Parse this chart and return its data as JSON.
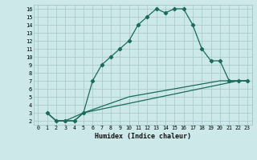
{
  "xlabel": "Humidex (Indice chaleur)",
  "xlim": [
    -0.5,
    23.5
  ],
  "ylim": [
    1.5,
    16.5
  ],
  "xticks": [
    0,
    1,
    2,
    3,
    4,
    5,
    6,
    7,
    8,
    9,
    10,
    11,
    12,
    13,
    14,
    15,
    16,
    17,
    18,
    19,
    20,
    21,
    22,
    23
  ],
  "yticks": [
    2,
    3,
    4,
    5,
    6,
    7,
    8,
    9,
    10,
    11,
    12,
    13,
    14,
    15,
    16
  ],
  "bg_color": "#cce8e8",
  "grid_color": "#aacccc",
  "line_color": "#1a6b5a",
  "line1_x": [
    1,
    2,
    3,
    4,
    5,
    6,
    7,
    8,
    9,
    10,
    11,
    12,
    13,
    14,
    15,
    16,
    17,
    18,
    19,
    20,
    21,
    22,
    23
  ],
  "line1_y": [
    3,
    2,
    2,
    2,
    3,
    7,
    9,
    10,
    11,
    12,
    14,
    15,
    16,
    15.5,
    16,
    16,
    14,
    11,
    9.5,
    9.5,
    7,
    7,
    7
  ],
  "line2_x": [
    1,
    2,
    3,
    4,
    5,
    22,
    23
  ],
  "line2_y": [
    3,
    2,
    2,
    2,
    3,
    7,
    7
  ],
  "line3_x": [
    1,
    2,
    3,
    5,
    10,
    15,
    20,
    22,
    23
  ],
  "line3_y": [
    3,
    2,
    2,
    3,
    5,
    6,
    7,
    7,
    7
  ]
}
